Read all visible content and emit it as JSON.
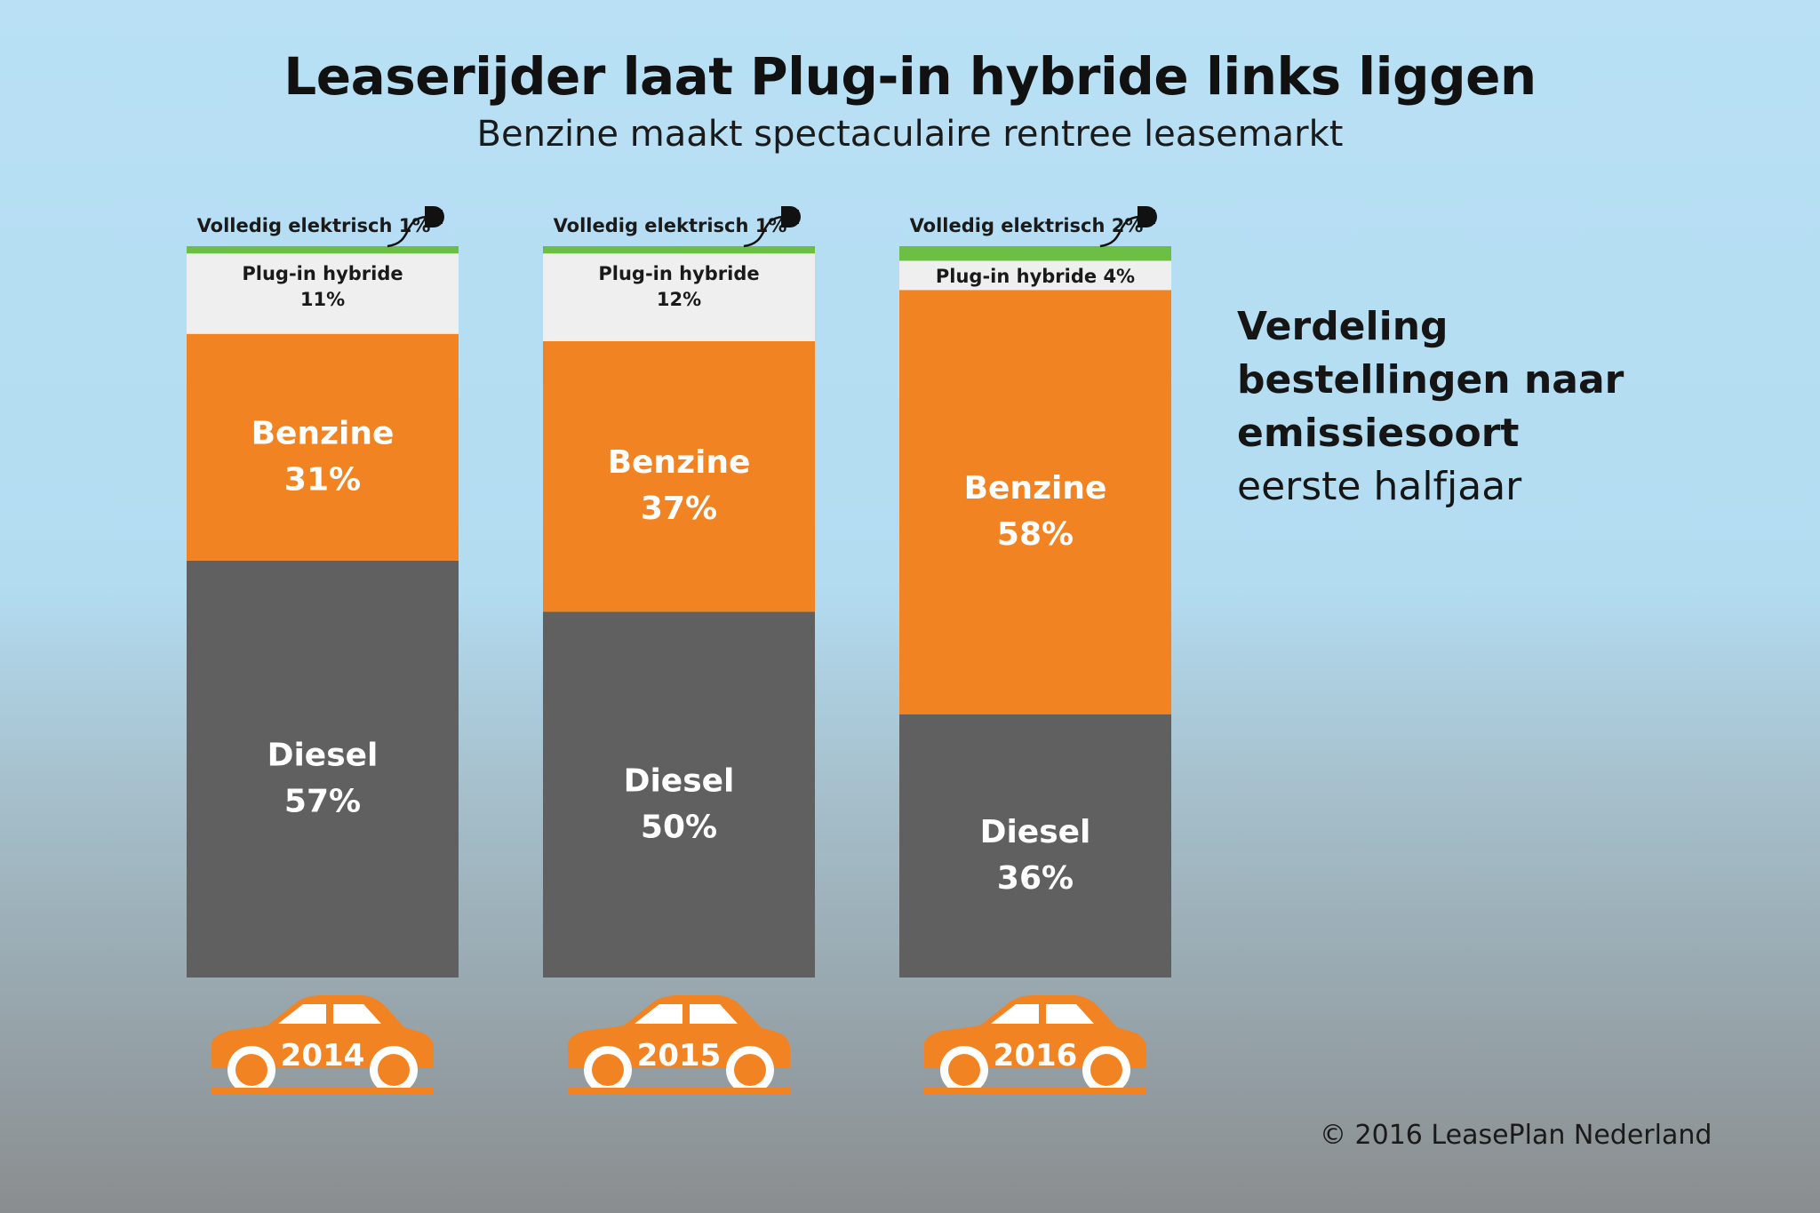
{
  "header": {
    "title": "Leaserijder laat Plug-in hybride links liggen",
    "subtitle": "Benzine maakt spectaculaire rentree leasemarkt"
  },
  "side_label": {
    "line1": "Verdeling",
    "line2": "bestellingen naar",
    "line3": "emissiesoort",
    "line4": "eerste halfjaar"
  },
  "footer": {
    "copyright": "© 2016 LeasePlan Nederland"
  },
  "chart_data": {
    "type": "bar",
    "stacked": true,
    "title": "Leaserijder laat Plug-in hybride links liggen",
    "subtitle": "Benzine maakt spectaculaire rentree leasemarkt",
    "categories": [
      "2014",
      "2015",
      "2016"
    ],
    "series": [
      {
        "name": "Diesel",
        "values": [
          57,
          50,
          36
        ],
        "color": "#606060"
      },
      {
        "name": "Benzine",
        "values": [
          31,
          37,
          58
        ],
        "color": "#f28322"
      },
      {
        "name": "Plug-in hybride",
        "values": [
          11,
          12,
          4
        ],
        "color": "#efeff0"
      },
      {
        "name": "Volledig elektrisch",
        "values": [
          1,
          1,
          2
        ],
        "color": "#6dbe45"
      }
    ],
    "value_suffix": "%",
    "grid": false,
    "legend": "none",
    "car_icon_color": "#f28322",
    "label_text_color_dark": "#1a1a1a",
    "label_text_color_light": "#ffffff"
  }
}
